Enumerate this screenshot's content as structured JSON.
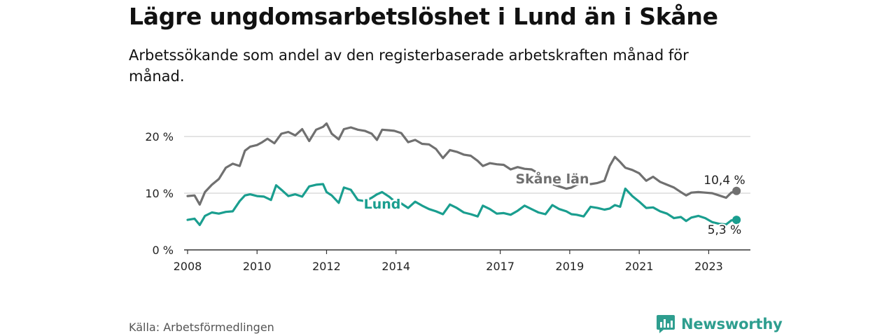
{
  "title": "Lägre ungdomsarbetslöshet i Lund än i Skåne",
  "subtitle": "Arbetssökande som andel av den registerbaserade arbetskraften månad för månad.",
  "source": "Källa: Arbetsförmedlingen",
  "brand": {
    "name": "Newsworthy",
    "icon": "bar-chart-speech-icon"
  },
  "colors": {
    "skane": "#707070",
    "lund": "#1a9e8f",
    "grid": "#d4d4d4",
    "axis": "#333333"
  },
  "chart_data": {
    "type": "line",
    "title": "Lägre ungdomsarbetslöshet i Lund än i Skåne",
    "xlabel": "",
    "ylabel": "",
    "xlim": [
      2007.9,
      2024.2
    ],
    "ylim": [
      0,
      20
    ],
    "x_ticks": [
      2008,
      2010,
      2012,
      2014,
      2017,
      2019,
      2021,
      2023
    ],
    "y_ticks": [
      {
        "value": 0,
        "label": "0 %"
      },
      {
        "value": 10,
        "label": "10 %"
      },
      {
        "value": 20,
        "label": "20 %"
      }
    ],
    "grid": true,
    "series": [
      {
        "name": "Skåne län",
        "label": "Skåne län",
        "end_label": "10,4 %",
        "x": [
          2008.0,
          2008.2,
          2008.35,
          2008.5,
          2008.7,
          2008.9,
          2009.1,
          2009.3,
          2009.5,
          2009.65,
          2009.8,
          2010.0,
          2010.15,
          2010.3,
          2010.5,
          2010.7,
          2010.9,
          2011.1,
          2011.3,
          2011.5,
          2011.7,
          2011.9,
          2012.0,
          2012.15,
          2012.35,
          2012.5,
          2012.7,
          2012.9,
          2013.1,
          2013.3,
          2013.45,
          2013.6,
          2013.8,
          2013.95,
          2014.15,
          2014.35,
          2014.55,
          2014.75,
          2014.95,
          2015.15,
          2015.35,
          2015.55,
          2015.75,
          2015.95,
          2016.15,
          2016.35,
          2016.5,
          2016.7,
          2016.9,
          2017.1,
          2017.3,
          2017.5,
          2017.7,
          2017.9,
          2018.1,
          2018.3,
          2018.5,
          2018.7,
          2018.9,
          2019.05,
          2019.2,
          2019.4,
          2019.6,
          2019.8,
          2020.0,
          2020.15,
          2020.3,
          2020.45,
          2020.6,
          2020.8,
          2021.0,
          2021.2,
          2021.4,
          2021.6,
          2021.8,
          2022.0,
          2022.2,
          2022.35,
          2022.5,
          2022.7,
          2022.9,
          2023.1,
          2023.3,
          2023.5,
          2023.65,
          2023.8
        ],
        "values": [
          9.5,
          9.6,
          8.0,
          10.2,
          11.5,
          12.5,
          14.5,
          15.2,
          14.8,
          17.5,
          18.2,
          18.5,
          19.0,
          19.6,
          18.8,
          20.5,
          20.8,
          20.2,
          21.3,
          19.2,
          21.2,
          21.7,
          22.3,
          20.5,
          19.5,
          21.3,
          21.6,
          21.2,
          21.0,
          20.5,
          19.4,
          21.2,
          21.1,
          21.0,
          20.6,
          19.0,
          19.4,
          18.7,
          18.6,
          17.8,
          16.2,
          17.6,
          17.3,
          16.8,
          16.6,
          15.7,
          14.8,
          15.3,
          15.1,
          15.0,
          14.2,
          14.6,
          14.3,
          14.2,
          13.5,
          12.3,
          11.6,
          11.2,
          10.8,
          11.0,
          11.5,
          11.9,
          11.6,
          11.8,
          12.2,
          14.8,
          16.4,
          15.5,
          14.5,
          14.1,
          13.5,
          12.2,
          12.9,
          12.0,
          11.5,
          11.0,
          10.2,
          9.6,
          10.1,
          10.2,
          10.1,
          10.0,
          9.6,
          9.2,
          10.1,
          10.4
        ]
      },
      {
        "name": "Lund",
        "label": "Lund",
        "end_label": "5,3 %",
        "x": [
          2008.0,
          2008.2,
          2008.35,
          2008.5,
          2008.7,
          2008.9,
          2009.1,
          2009.3,
          2009.5,
          2009.65,
          2009.8,
          2010.0,
          2010.2,
          2010.4,
          2010.55,
          2010.7,
          2010.9,
          2011.1,
          2011.3,
          2011.5,
          2011.7,
          2011.9,
          2012.0,
          2012.15,
          2012.35,
          2012.5,
          2012.7,
          2012.9,
          2013.1,
          2013.3,
          2013.45,
          2013.6,
          2013.8,
          2013.95,
          2014.15,
          2014.35,
          2014.55,
          2014.75,
          2014.95,
          2015.15,
          2015.35,
          2015.55,
          2015.75,
          2015.95,
          2016.15,
          2016.35,
          2016.5,
          2016.7,
          2016.9,
          2017.1,
          2017.3,
          2017.5,
          2017.7,
          2017.9,
          2018.1,
          2018.3,
          2018.5,
          2018.7,
          2018.9,
          2019.05,
          2019.2,
          2019.4,
          2019.6,
          2019.8,
          2020.0,
          2020.15,
          2020.3,
          2020.45,
          2020.6,
          2020.8,
          2021.0,
          2021.2,
          2021.4,
          2021.6,
          2021.8,
          2022.0,
          2022.2,
          2022.35,
          2022.5,
          2022.7,
          2022.9,
          2023.1,
          2023.3,
          2023.5,
          2023.65,
          2023.8
        ],
        "values": [
          5.3,
          5.5,
          4.4,
          6.0,
          6.6,
          6.4,
          6.7,
          6.8,
          8.6,
          9.6,
          9.8,
          9.5,
          9.4,
          8.8,
          11.4,
          10.6,
          9.5,
          9.8,
          9.4,
          11.2,
          11.5,
          11.6,
          10.2,
          9.6,
          8.3,
          11.0,
          10.6,
          8.8,
          8.6,
          9.2,
          9.8,
          10.2,
          9.4,
          8.6,
          8.2,
          7.4,
          8.5,
          7.8,
          7.2,
          6.8,
          6.3,
          8.0,
          7.4,
          6.6,
          6.3,
          5.9,
          7.8,
          7.2,
          6.4,
          6.5,
          6.2,
          6.9,
          7.8,
          7.2,
          6.6,
          6.3,
          7.9,
          7.2,
          6.8,
          6.3,
          6.2,
          5.9,
          7.6,
          7.4,
          7.1,
          7.3,
          7.9,
          7.6,
          10.8,
          9.5,
          8.5,
          7.4,
          7.5,
          6.8,
          6.4,
          5.6,
          5.8,
          5.1,
          5.7,
          6.0,
          5.6,
          4.9,
          4.6,
          4.5,
          5.2,
          5.3
        ]
      }
    ]
  }
}
